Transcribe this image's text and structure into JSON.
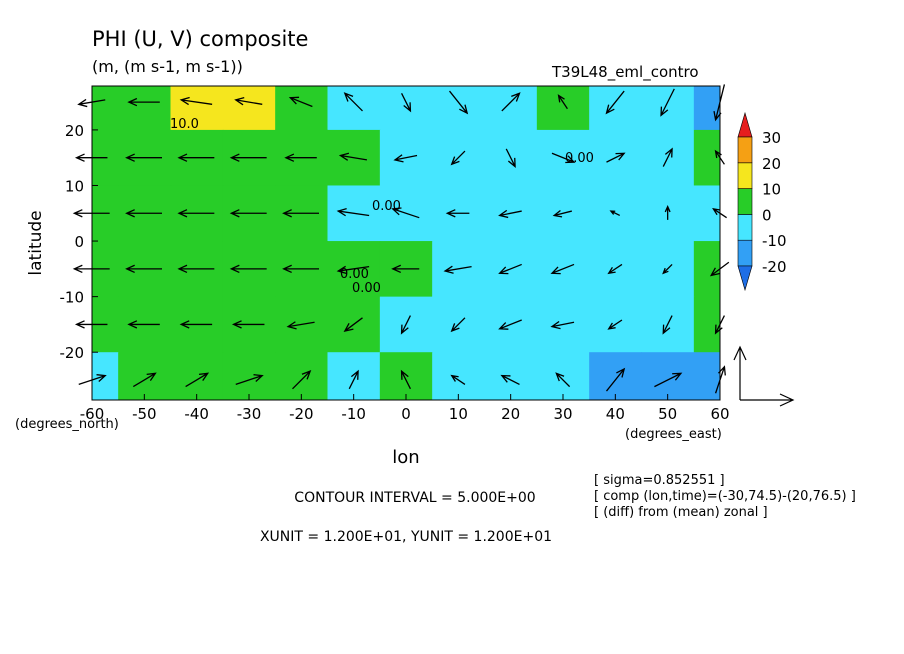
{
  "chart_data": {
    "type": "contour_vector",
    "title": "PHI (U, V) composite",
    "subtitle": "(m, (m s-1, m s-1))",
    "run_label": "T39L48_eml_contro",
    "x_label": "lon",
    "y_label": "latitude",
    "y_unit_label": "(degrees_north)",
    "x_unit_label": "(degrees_east)",
    "contour_interval_text": "CONTOUR INTERVAL = 5.000E+00",
    "unit_text": "XUNIT = 1.200E+01, YUNIT = 1.200E+01",
    "vector_unit": 12,
    "info_lines": [
      "[ sigma=0.852551 ]",
      "[ comp (lon,time)=(-30,74.5)-(20,76.5) ]",
      "[ (diff) from (mean) zonal ]"
    ],
    "contour_labels": [
      "10.0",
      "0.00",
      "0.00",
      "0.00",
      "0.00"
    ],
    "xlim": [
      -60,
      60
    ],
    "ylim": [
      -28.6,
      27.9
    ],
    "xticks": [
      -60,
      -50,
      -40,
      -30,
      -20,
      -10,
      0,
      10,
      20,
      30,
      40,
      50,
      60
    ],
    "yticks": [
      -20,
      -10,
      0,
      10,
      20
    ],
    "x": [
      -60,
      -50,
      -40,
      -30,
      -20,
      -10,
      0,
      10,
      20,
      30,
      40,
      50,
      60
    ],
    "y": [
      25,
      15,
      5,
      -5,
      -15,
      -25
    ],
    "levels": [
      -20,
      -10,
      0,
      10,
      20,
      30
    ],
    "colors": [
      "#1e6ee6",
      "#32a0f5",
      "#46e6ff",
      "#28cd28",
      "#f5e61e",
      "#f5a014",
      "#e61e1e"
    ],
    "field": [
      [
        5,
        6,
        10,
        12,
        8,
        -3,
        -5,
        -6,
        -4,
        3,
        -5,
        -8,
        -14
      ],
      [
        5,
        5,
        5,
        5,
        4,
        3,
        -3,
        -6,
        -6,
        -5,
        -4,
        -4,
        2
      ],
      [
        5,
        5,
        5,
        5,
        4,
        -2,
        -5,
        -7,
        -8,
        -8,
        -7,
        -6,
        -5
      ],
      [
        5,
        5,
        5,
        5,
        5,
        3,
        2,
        -4,
        -8,
        -8,
        -7,
        -5,
        3
      ],
      [
        5,
        5,
        5,
        5,
        5,
        1,
        -4,
        -6,
        -7,
        -6,
        -4,
        -3,
        2
      ],
      [
        -3,
        3,
        4,
        4,
        6,
        -2,
        1,
        -5,
        -6,
        -7,
        -12,
        -15,
        -13
      ]
    ],
    "u": [
      [
        -6,
        -7,
        -7,
        -6,
        -5,
        -4,
        2,
        4,
        4,
        -2,
        -4,
        -3,
        -2
      ],
      [
        -7,
        -8,
        -8,
        -8,
        -7,
        -6,
        -5,
        -3,
        2,
        5,
        4,
        2,
        -2
      ],
      [
        -8,
        -8,
        -8,
        -8,
        -8,
        -7,
        -6,
        -5,
        -5,
        -4,
        -2,
        0,
        -3
      ],
      [
        -8,
        -8,
        -8,
        -8,
        -8,
        -7,
        -6,
        -6,
        -5,
        -5,
        -3,
        -2,
        -4
      ],
      [
        -7,
        -7,
        -7,
        -7,
        -6,
        -4,
        -2,
        -3,
        -5,
        -5,
        -3,
        -2,
        -2
      ],
      [
        6,
        5,
        5,
        6,
        4,
        2,
        -2,
        -3,
        -4,
        -3,
        4,
        6,
        2
      ]
    ],
    "v": [
      [
        -1,
        0,
        1,
        1,
        2,
        4,
        -4,
        -5,
        4,
        3,
        -5,
        -6,
        -8
      ],
      [
        0,
        0,
        0,
        0,
        0,
        1,
        -1,
        -3,
        -4,
        -2,
        2,
        4,
        3
      ],
      [
        0,
        0,
        0,
        0,
        0,
        1,
        2,
        0,
        -1,
        -1,
        1,
        3,
        2
      ],
      [
        0,
        0,
        0,
        0,
        0,
        -1,
        0,
        -1,
        -2,
        -2,
        -2,
        -2,
        -3
      ],
      [
        0,
        0,
        0,
        0,
        -1,
        -3,
        -4,
        -3,
        -2,
        -1,
        -2,
        -4,
        -4
      ],
      [
        2,
        3,
        3,
        2,
        4,
        4,
        4,
        2,
        2,
        3,
        5,
        3,
        6
      ]
    ]
  }
}
